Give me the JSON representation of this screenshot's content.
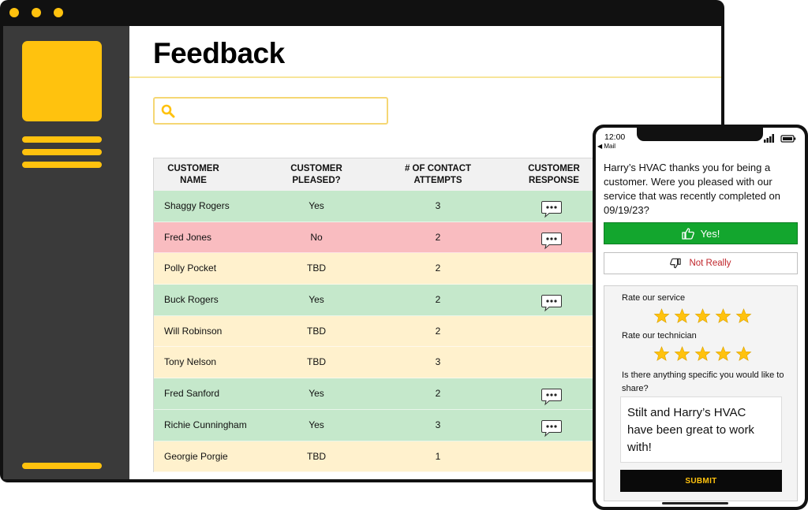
{
  "app": {
    "page_title": "Feedback",
    "search": {
      "value": "",
      "placeholder": ""
    },
    "accent_color": "#FFC20E"
  },
  "table": {
    "headers": [
      "CUSTOMER NAME",
      "CUSTOMER PLEASED?",
      "# OF CONTACT ATTEMPTS",
      "CUSTOMER RESPONSE"
    ],
    "rows": [
      {
        "name": "Shaggy Rogers",
        "pleased": "Yes",
        "attempts": "3",
        "status": "green",
        "has_response": true
      },
      {
        "name": "Fred Jones",
        "pleased": "No",
        "attempts": "2",
        "status": "red",
        "has_response": true
      },
      {
        "name": "Polly Pocket",
        "pleased": "TBD",
        "attempts": "2",
        "status": "yellow",
        "has_response": false
      },
      {
        "name": "Buck Rogers",
        "pleased": "Yes",
        "attempts": "2",
        "status": "green",
        "has_response": true
      },
      {
        "name": "Will Robinson",
        "pleased": "TBD",
        "attempts": "2",
        "status": "yellow",
        "has_response": false
      },
      {
        "name": "Tony Nelson",
        "pleased": "TBD",
        "attempts": "3",
        "status": "yellow",
        "has_response": false
      },
      {
        "name": "Fred Sanford",
        "pleased": "Yes",
        "attempts": "2",
        "status": "green",
        "has_response": true
      },
      {
        "name": "Richie Cunningham",
        "pleased": "Yes",
        "attempts": "3",
        "status": "green",
        "has_response": true
      },
      {
        "name": "Georgie Porgie",
        "pleased": "TBD",
        "attempts": "1",
        "status": "yellow",
        "has_response": false
      }
    ],
    "status_colors": {
      "green": "#C5E8CB",
      "red": "#F9BCC0",
      "yellow": "#FFF1CD"
    }
  },
  "phone": {
    "time": "12:00",
    "back_label": "◀ Mail",
    "message": "Harry’s HVAC thanks you for being a customer. Were you pleased with our service that was recently completed on 09/19/23?",
    "yes_label": "Yes!",
    "no_label": "Not Really",
    "rate_service_label": "Rate our service",
    "service_rating": 5,
    "rate_technician_label": "Rate our technician",
    "technician_rating": 5,
    "share_prompt": "Is there anything specific you would like to share?",
    "share_text": "Stilt and Harry’s HVAC have been great to work with!",
    "submit_label": "SUBMIT"
  }
}
